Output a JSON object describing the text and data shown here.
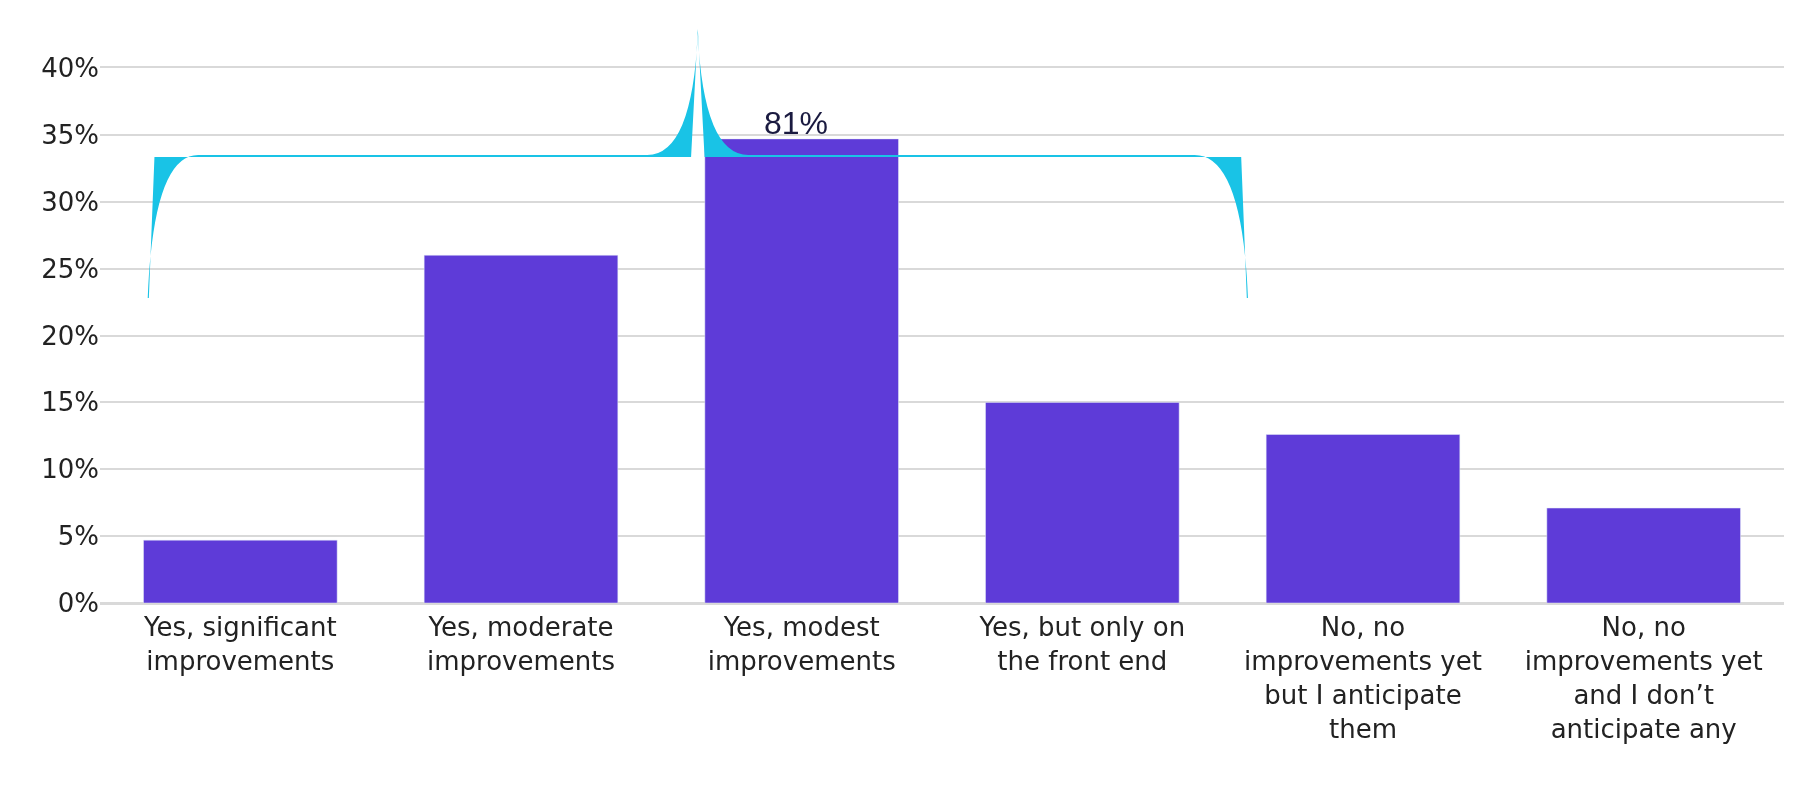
{
  "chart_data": {
    "type": "bar",
    "categories": [
      "Yes, significant improvements",
      "Yes, moderate improvements",
      "Yes, modest improvements",
      "Yes, but only on the front end",
      "No, no improvements yet but I anticipate them",
      "No, no improvements yet and I don’t anticipate any"
    ],
    "values": [
      4.7,
      26.0,
      34.7,
      15.0,
      12.6,
      7.1
    ],
    "color": "#5e3bd8",
    "ylim": [
      0,
      40
    ],
    "yticks": [
      {
        "value": 0,
        "label": "0%"
      },
      {
        "value": 5,
        "label": "5%"
      },
      {
        "value": 10,
        "label": "10%"
      },
      {
        "value": 15,
        "label": "15%"
      },
      {
        "value": 20,
        "label": "20%"
      },
      {
        "value": 25,
        "label": "25%"
      },
      {
        "value": 30,
        "label": "30%"
      },
      {
        "value": 35,
        "label": "35%"
      },
      {
        "value": 40,
        "label": "40%"
      }
    ],
    "grid": "y",
    "annotations": [
      "81%"
    ]
  }
}
